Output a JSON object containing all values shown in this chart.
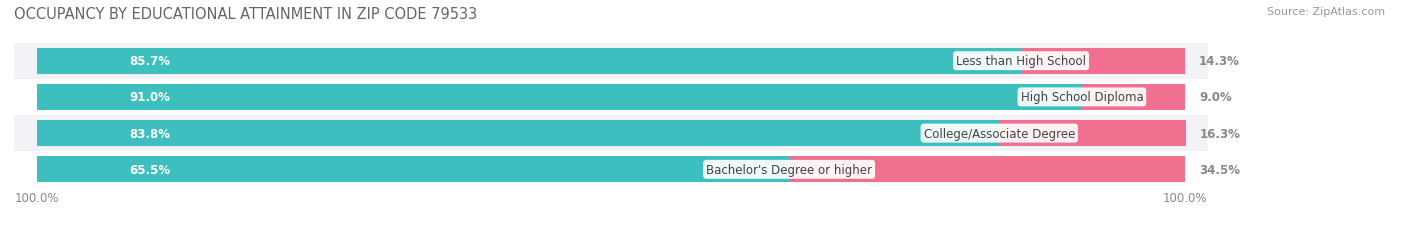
{
  "title": "OCCUPANCY BY EDUCATIONAL ATTAINMENT IN ZIP CODE 79533",
  "source": "Source: ZipAtlas.com",
  "categories": [
    "Less than High School",
    "High School Diploma",
    "College/Associate Degree",
    "Bachelor's Degree or higher"
  ],
  "owner_pct": [
    85.7,
    91.0,
    83.8,
    65.5
  ],
  "renter_pct": [
    14.3,
    9.0,
    16.3,
    34.5
  ],
  "owner_color": "#3DBFBF",
  "renter_color": "#F07090",
  "row_colors": [
    "#F2F2F7",
    "#FFFFFF",
    "#F2F2F7",
    "#FFFFFF"
  ],
  "bar_bg_color": "#E0E0EA",
  "bg_color": "#FFFFFF",
  "title_fontsize": 10.5,
  "source_fontsize": 8,
  "cat_fontsize": 8.5,
  "pct_fontsize": 8.5,
  "bar_height": 0.72,
  "x_left_label": "100.0%",
  "x_right_label": "100.0%"
}
